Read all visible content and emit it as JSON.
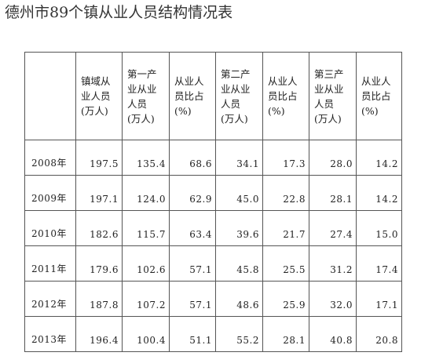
{
  "title": "德州市89个镇从业人员结构情况表",
  "table": {
    "headers": [
      {
        "lines": [
          ""
        ]
      },
      {
        "lines": [
          "镇域从",
          "业人员",
          "(万人)"
        ]
      },
      {
        "lines": [
          "第一产",
          "业从业",
          "人员",
          "(万人)"
        ]
      },
      {
        "lines": [
          "从业人",
          "员比占",
          "(%)"
        ]
      },
      {
        "lines": [
          "第二产",
          "业从业",
          "人员",
          "(万人)"
        ]
      },
      {
        "lines": [
          "从业人",
          "员比占",
          "(%)"
        ]
      },
      {
        "lines": [
          "第三产",
          "业从业",
          "人员",
          "(万人)"
        ]
      },
      {
        "lines": [
          "从业人",
          "员比占",
          "(%)"
        ]
      }
    ],
    "rows": [
      [
        "2008年",
        "197.5",
        "135.4",
        "68.6",
        "34.1",
        "17.3",
        "28.0",
        "14.2"
      ],
      [
        "2009年",
        "197.1",
        "124.0",
        "62.9",
        "45.0",
        "22.8",
        "28.1",
        "14.2"
      ],
      [
        "2010年",
        "182.6",
        "115.7",
        "63.4",
        "39.6",
        "21.7",
        "27.4",
        "15.0"
      ],
      [
        "2011年",
        "179.6",
        "102.6",
        "57.1",
        "45.8",
        "25.5",
        "31.2",
        "17.4"
      ],
      [
        "2012年",
        "187.8",
        "107.2",
        "57.1",
        "48.6",
        "25.9",
        "32.0",
        "17.1"
      ],
      [
        "2013年",
        "196.4",
        "100.4",
        "51.1",
        "55.2",
        "28.1",
        "40.8",
        "20.8"
      ]
    ]
  }
}
